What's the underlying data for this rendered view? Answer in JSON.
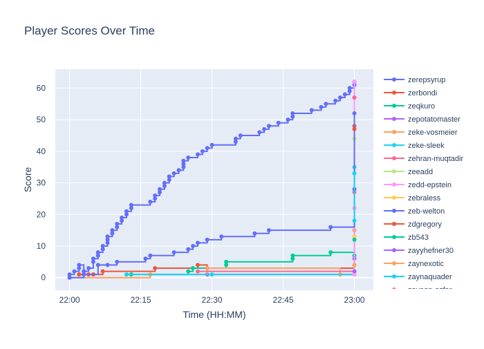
{
  "chart_data": {
    "type": "line",
    "line_shape": "step",
    "title": "Player Scores Over Time",
    "xlabel": "Time (HH:MM)",
    "ylabel": "Score",
    "x_ticks": [
      "22:00",
      "22:15",
      "22:30",
      "22:45",
      "23:00"
    ],
    "y_ticks": [
      0,
      10,
      20,
      30,
      40,
      50,
      60
    ],
    "xlim": [
      "21:57",
      "23:04"
    ],
    "ylim": [
      -4,
      66
    ],
    "grid": true,
    "legend_position": "right",
    "colors": {
      "plot_background": "#e5ecf6",
      "grid": "#ffffff",
      "text": "#2a3f5f"
    },
    "series": [
      {
        "name": "zerepsyrup",
        "color": "#636efa",
        "points": [
          [
            "22:00",
            0
          ],
          [
            "22:00",
            1
          ],
          [
            "22:01",
            2
          ],
          [
            "22:02",
            3
          ],
          [
            "22:02",
            4
          ],
          [
            "22:03",
            1
          ],
          [
            "22:03",
            2
          ],
          [
            "22:04",
            3
          ],
          [
            "22:05",
            5
          ],
          [
            "22:05",
            6
          ],
          [
            "22:06",
            7
          ],
          [
            "22:06",
            8
          ],
          [
            "22:07",
            9
          ],
          [
            "22:07",
            10
          ],
          [
            "22:08",
            11
          ],
          [
            "22:08",
            12
          ],
          [
            "22:08",
            13
          ],
          [
            "22:09",
            14
          ],
          [
            "22:09",
            15
          ],
          [
            "22:10",
            16
          ],
          [
            "22:10",
            17
          ],
          [
            "22:11",
            18
          ],
          [
            "22:11",
            19
          ],
          [
            "22:12",
            20
          ],
          [
            "22:12",
            21
          ],
          [
            "22:13",
            22
          ],
          [
            "22:13",
            23
          ],
          [
            "22:17",
            24
          ],
          [
            "22:18",
            25
          ],
          [
            "22:18",
            26
          ],
          [
            "22:19",
            27
          ],
          [
            "22:19",
            28
          ],
          [
            "22:20",
            29
          ],
          [
            "22:20",
            30
          ],
          [
            "22:21",
            31
          ],
          [
            "22:21",
            32
          ],
          [
            "22:22",
            33
          ],
          [
            "22:23",
            34
          ],
          [
            "22:24",
            35
          ],
          [
            "22:24",
            36
          ],
          [
            "22:24",
            37
          ],
          [
            "22:25",
            38
          ],
          [
            "22:27",
            39
          ],
          [
            "22:28",
            40
          ],
          [
            "22:29",
            41
          ],
          [
            "22:30",
            42
          ],
          [
            "22:35",
            43
          ],
          [
            "22:35",
            44
          ],
          [
            "22:36",
            45
          ],
          [
            "22:40",
            46
          ],
          [
            "22:41",
            47
          ],
          [
            "22:42",
            48
          ],
          [
            "22:44",
            49
          ],
          [
            "22:46",
            50
          ],
          [
            "22:47",
            51
          ],
          [
            "22:47",
            52
          ],
          [
            "22:51",
            53
          ],
          [
            "22:53",
            54
          ],
          [
            "22:54",
            55
          ],
          [
            "22:56",
            56
          ],
          [
            "22:57",
            57
          ],
          [
            "22:58",
            58
          ],
          [
            "22:59",
            59
          ],
          [
            "22:59",
            60
          ],
          [
            "23:00",
            61
          ],
          [
            "23:00",
            62
          ]
        ]
      },
      {
        "name": "zerbondi",
        "color": "#ef553b",
        "points": [
          [
            "22:02",
            1
          ],
          [
            "22:02",
            1
          ],
          [
            "22:03",
            1
          ],
          [
            "22:03",
            1
          ],
          [
            "22:04",
            1
          ],
          [
            "22:05",
            1
          ],
          [
            "22:05",
            1
          ],
          [
            "22:07",
            2
          ],
          [
            "22:18",
            3
          ],
          [
            "22:27",
            4
          ],
          [
            "22:29",
            3
          ],
          [
            "23:00",
            48
          ]
        ]
      },
      {
        "name": "zeqkuro",
        "color": "#00cc96",
        "points": [
          [
            "22:13",
            1
          ],
          [
            "22:13",
            1
          ],
          [
            "22:25",
            2
          ],
          [
            "22:26",
            3
          ],
          [
            "22:33",
            4
          ],
          [
            "22:33",
            5
          ],
          [
            "22:47",
            6
          ],
          [
            "22:47",
            7
          ],
          [
            "22:55",
            8
          ],
          [
            "23:00",
            7
          ]
        ]
      },
      {
        "name": "zepotatomaster",
        "color": "#ab63fa",
        "points": [
          [
            "22:29",
            1
          ],
          [
            "23:00",
            6
          ]
        ]
      },
      {
        "name": "zeke-vosmeier",
        "color": "#ffa15a",
        "points": [
          [
            "22:00",
            0
          ],
          [
            "22:17",
            1
          ],
          [
            "22:29",
            3
          ],
          [
            "22:57",
            1
          ],
          [
            "23:00",
            15
          ]
        ]
      },
      {
        "name": "zeke-sleek",
        "color": "#19d3f3",
        "points": [
          [
            "22:12",
            1
          ],
          [
            "22:30",
            1
          ],
          [
            "23:00",
            35
          ]
        ]
      },
      {
        "name": "zehran-muqtadir",
        "color": "#ff6692",
        "points": [
          [
            "22:27",
            2
          ],
          [
            "23:00",
            27
          ]
        ]
      },
      {
        "name": "zeeadd",
        "color": "#b6e880",
        "points": [
          [
            "23:00",
            44
          ]
        ]
      },
      {
        "name": "zedd-epstein",
        "color": "#ff97ff",
        "points": [
          [
            "23:00",
            1
          ],
          [
            "23:00",
            22
          ],
          [
            "23:00",
            57
          ],
          [
            "23:00",
            62
          ]
        ]
      },
      {
        "name": "zebraless",
        "color": "#fecb52",
        "points": [
          [
            "23:00",
            13
          ]
        ]
      },
      {
        "name": "zeb-welton",
        "color": "#636efa",
        "points": [
          [
            "22:00",
            0
          ],
          [
            "22:03",
            1
          ],
          [
            "22:06",
            4
          ],
          [
            "22:08",
            4
          ],
          [
            "22:10",
            5
          ],
          [
            "22:16",
            6
          ],
          [
            "22:17",
            7
          ],
          [
            "22:22",
            8
          ],
          [
            "22:25",
            9
          ],
          [
            "22:26",
            10
          ],
          [
            "22:27",
            11
          ],
          [
            "22:29",
            12
          ],
          [
            "22:32",
            13
          ],
          [
            "22:39",
            14
          ],
          [
            "22:42",
            15
          ],
          [
            "22:55",
            16
          ],
          [
            "23:00",
            28
          ],
          [
            "23:00",
            52
          ]
        ]
      },
      {
        "name": "zdgregory",
        "color": "#ef553b",
        "points": [
          [
            "23:00",
            47
          ]
        ]
      },
      {
        "name": "zb543",
        "color": "#00cc96",
        "points": [
          [
            "23:00",
            12
          ]
        ]
      },
      {
        "name": "zayyhefner30",
        "color": "#ab63fa",
        "points": [
          [
            "23:00",
            2
          ]
        ]
      },
      {
        "name": "zaynexotic",
        "color": "#ffa15a",
        "points": [
          [
            "23:00",
            4
          ]
        ]
      },
      {
        "name": "zaynaquader",
        "color": "#19d3f3",
        "points": [
          [
            "23:00",
            33
          ],
          [
            "23:00",
            18
          ]
        ]
      },
      {
        "name": "zayaan-azfar",
        "color": "#ff6692",
        "points": [
          [
            "23:00",
            57
          ]
        ]
      }
    ]
  }
}
